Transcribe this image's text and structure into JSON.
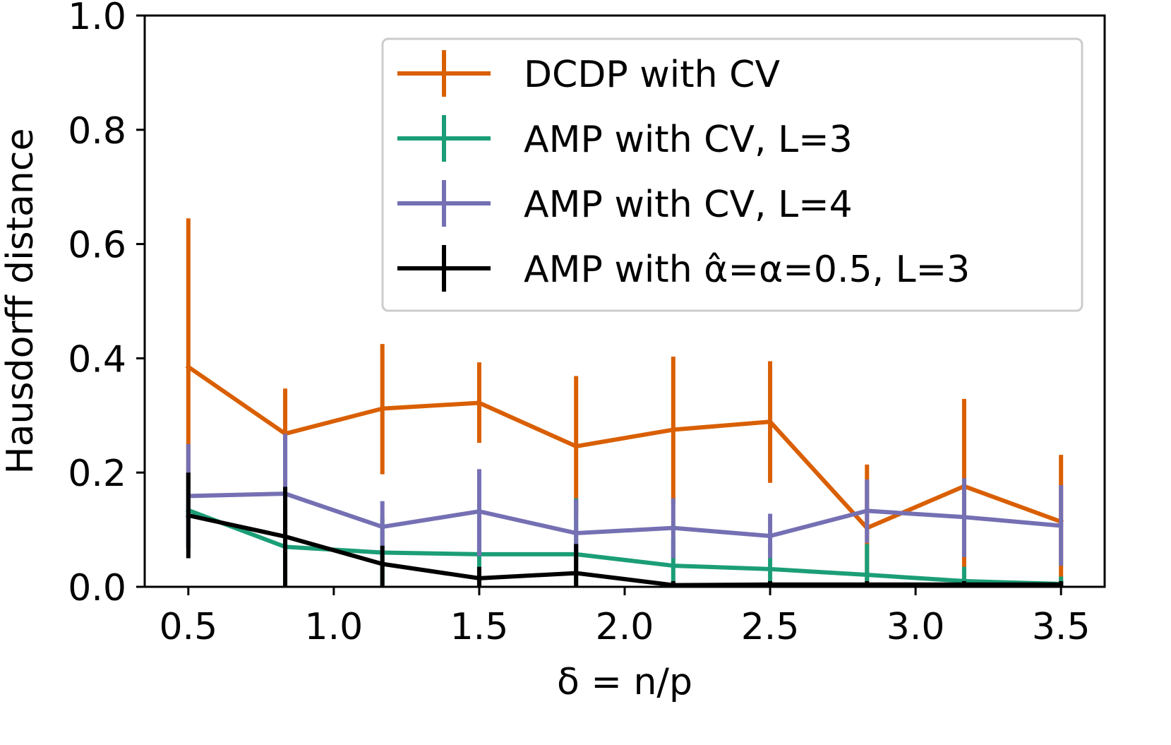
{
  "chart_data": {
    "type": "line",
    "title": "",
    "xlabel": "δ = n/p",
    "ylabel": "Hausdorff distance",
    "xlim": [
      0.35,
      3.65
    ],
    "ylim": [
      0.0,
      1.0
    ],
    "xticks": [
      0.5,
      1.0,
      1.5,
      2.0,
      2.5,
      3.0,
      3.5
    ],
    "xtick_labels": [
      "0.5",
      "1.0",
      "1.5",
      "2.0",
      "2.5",
      "3.0",
      "3.5"
    ],
    "yticks": [
      0.0,
      0.2,
      0.4,
      0.6,
      0.8,
      1.0
    ],
    "ytick_labels": [
      "0.0",
      "0.2",
      "0.4",
      "0.6",
      "0.8",
      "1.0"
    ],
    "legend_position": "top-right",
    "x": [
      0.5,
      0.833,
      1.167,
      1.5,
      1.833,
      2.167,
      2.5,
      2.833,
      3.167,
      3.5
    ],
    "series": [
      {
        "name": "DCDP with CV",
        "color": "#d95f02",
        "values": [
          0.385,
          0.268,
          0.312,
          0.322,
          0.246,
          0.275,
          0.289,
          0.103,
          0.176,
          0.114
        ],
        "err_low": [
          0.128,
          0.185,
          0.197,
          0.252,
          0.122,
          0.145,
          0.182,
          0.0,
          0.0,
          0.0
        ],
        "err_high": [
          0.645,
          0.347,
          0.425,
          0.393,
          0.369,
          0.403,
          0.395,
          0.214,
          0.329,
          0.231
        ]
      },
      {
        "name": "AMP with CV, L=3",
        "color": "#1b9e77",
        "values": [
          0.134,
          0.07,
          0.06,
          0.057,
          0.057,
          0.037,
          0.031,
          0.021,
          0.01,
          0.005
        ],
        "err_low": [
          0.068,
          0.0,
          0.0,
          0.0,
          0.0,
          0.0,
          0.0,
          0.0,
          0.0,
          0.0
        ],
        "err_high": [
          0.2,
          0.14,
          0.12,
          0.115,
          0.155,
          0.085,
          0.075,
          0.075,
          0.035,
          0.018
        ]
      },
      {
        "name": "AMP with CV, L=4",
        "color": "#7570b3",
        "values": [
          0.159,
          0.163,
          0.105,
          0.132,
          0.094,
          0.103,
          0.089,
          0.133,
          0.122,
          0.107
        ],
        "err_low": [
          0.068,
          0.058,
          0.058,
          0.054,
          0.035,
          0.05,
          0.05,
          0.077,
          0.052,
          0.037
        ],
        "err_high": [
          0.25,
          0.268,
          0.15,
          0.206,
          0.153,
          0.155,
          0.128,
          0.188,
          0.19,
          0.178
        ]
      },
      {
        "name": "AMP with α̂=α=0.5, L=3",
        "color": "#000000",
        "values": [
          0.125,
          0.088,
          0.04,
          0.015,
          0.024,
          0.003,
          0.004,
          0.004,
          0.004,
          0.004
        ],
        "err_low": [
          0.05,
          0.0,
          0.0,
          0.0,
          0.0,
          0.0,
          0.0,
          0.0,
          0.0,
          0.0
        ],
        "err_high": [
          0.2,
          0.175,
          0.072,
          0.035,
          0.075,
          0.01,
          0.01,
          0.01,
          0.01,
          0.01
        ]
      }
    ]
  }
}
